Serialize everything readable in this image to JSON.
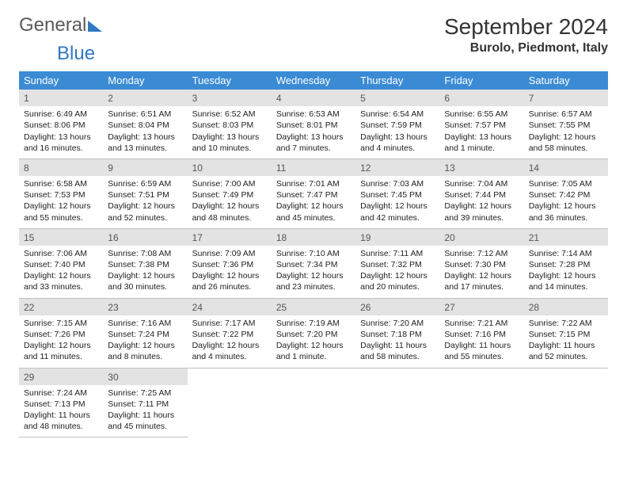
{
  "brand": {
    "part1": "General",
    "part2": "Blue"
  },
  "title": "September 2024",
  "location": "Burolo, Piedmont, Italy",
  "dayHeaders": [
    "Sunday",
    "Monday",
    "Tuesday",
    "Wednesday",
    "Thursday",
    "Friday",
    "Saturday"
  ],
  "colors": {
    "headerBg": "#3b8bd4",
    "dayNumBg": "#e3e3e3",
    "border": "#bfbfbf",
    "logoBlue": "#2f78c2"
  },
  "weeks": [
    [
      {
        "n": "1",
        "sunrise": "6:49 AM",
        "sunset": "8:06 PM",
        "daylight": "13 hours and 16 minutes."
      },
      {
        "n": "2",
        "sunrise": "6:51 AM",
        "sunset": "8:04 PM",
        "daylight": "13 hours and 13 minutes."
      },
      {
        "n": "3",
        "sunrise": "6:52 AM",
        "sunset": "8:03 PM",
        "daylight": "13 hours and 10 minutes."
      },
      {
        "n": "4",
        "sunrise": "6:53 AM",
        "sunset": "8:01 PM",
        "daylight": "13 hours and 7 minutes."
      },
      {
        "n": "5",
        "sunrise": "6:54 AM",
        "sunset": "7:59 PM",
        "daylight": "13 hours and 4 minutes."
      },
      {
        "n": "6",
        "sunrise": "6:55 AM",
        "sunset": "7:57 PM",
        "daylight": "13 hours and 1 minute."
      },
      {
        "n": "7",
        "sunrise": "6:57 AM",
        "sunset": "7:55 PM",
        "daylight": "12 hours and 58 minutes."
      }
    ],
    [
      {
        "n": "8",
        "sunrise": "6:58 AM",
        "sunset": "7:53 PM",
        "daylight": "12 hours and 55 minutes."
      },
      {
        "n": "9",
        "sunrise": "6:59 AM",
        "sunset": "7:51 PM",
        "daylight": "12 hours and 52 minutes."
      },
      {
        "n": "10",
        "sunrise": "7:00 AM",
        "sunset": "7:49 PM",
        "daylight": "12 hours and 48 minutes."
      },
      {
        "n": "11",
        "sunrise": "7:01 AM",
        "sunset": "7:47 PM",
        "daylight": "12 hours and 45 minutes."
      },
      {
        "n": "12",
        "sunrise": "7:03 AM",
        "sunset": "7:45 PM",
        "daylight": "12 hours and 42 minutes."
      },
      {
        "n": "13",
        "sunrise": "7:04 AM",
        "sunset": "7:44 PM",
        "daylight": "12 hours and 39 minutes."
      },
      {
        "n": "14",
        "sunrise": "7:05 AM",
        "sunset": "7:42 PM",
        "daylight": "12 hours and 36 minutes."
      }
    ],
    [
      {
        "n": "15",
        "sunrise": "7:06 AM",
        "sunset": "7:40 PM",
        "daylight": "12 hours and 33 minutes."
      },
      {
        "n": "16",
        "sunrise": "7:08 AM",
        "sunset": "7:38 PM",
        "daylight": "12 hours and 30 minutes."
      },
      {
        "n": "17",
        "sunrise": "7:09 AM",
        "sunset": "7:36 PM",
        "daylight": "12 hours and 26 minutes."
      },
      {
        "n": "18",
        "sunrise": "7:10 AM",
        "sunset": "7:34 PM",
        "daylight": "12 hours and 23 minutes."
      },
      {
        "n": "19",
        "sunrise": "7:11 AM",
        "sunset": "7:32 PM",
        "daylight": "12 hours and 20 minutes."
      },
      {
        "n": "20",
        "sunrise": "7:12 AM",
        "sunset": "7:30 PM",
        "daylight": "12 hours and 17 minutes."
      },
      {
        "n": "21",
        "sunrise": "7:14 AM",
        "sunset": "7:28 PM",
        "daylight": "12 hours and 14 minutes."
      }
    ],
    [
      {
        "n": "22",
        "sunrise": "7:15 AM",
        "sunset": "7:26 PM",
        "daylight": "12 hours and 11 minutes."
      },
      {
        "n": "23",
        "sunrise": "7:16 AM",
        "sunset": "7:24 PM",
        "daylight": "12 hours and 8 minutes."
      },
      {
        "n": "24",
        "sunrise": "7:17 AM",
        "sunset": "7:22 PM",
        "daylight": "12 hours and 4 minutes."
      },
      {
        "n": "25",
        "sunrise": "7:19 AM",
        "sunset": "7:20 PM",
        "daylight": "12 hours and 1 minute."
      },
      {
        "n": "26",
        "sunrise": "7:20 AM",
        "sunset": "7:18 PM",
        "daylight": "11 hours and 58 minutes."
      },
      {
        "n": "27",
        "sunrise": "7:21 AM",
        "sunset": "7:16 PM",
        "daylight": "11 hours and 55 minutes."
      },
      {
        "n": "28",
        "sunrise": "7:22 AM",
        "sunset": "7:15 PM",
        "daylight": "11 hours and 52 minutes."
      }
    ],
    [
      {
        "n": "29",
        "sunrise": "7:24 AM",
        "sunset": "7:13 PM",
        "daylight": "11 hours and 48 minutes."
      },
      {
        "n": "30",
        "sunrise": "7:25 AM",
        "sunset": "7:11 PM",
        "daylight": "11 hours and 45 minutes."
      },
      null,
      null,
      null,
      null,
      null
    ]
  ],
  "labels": {
    "sunrise": "Sunrise:",
    "sunset": "Sunset:",
    "daylight": "Daylight:"
  }
}
